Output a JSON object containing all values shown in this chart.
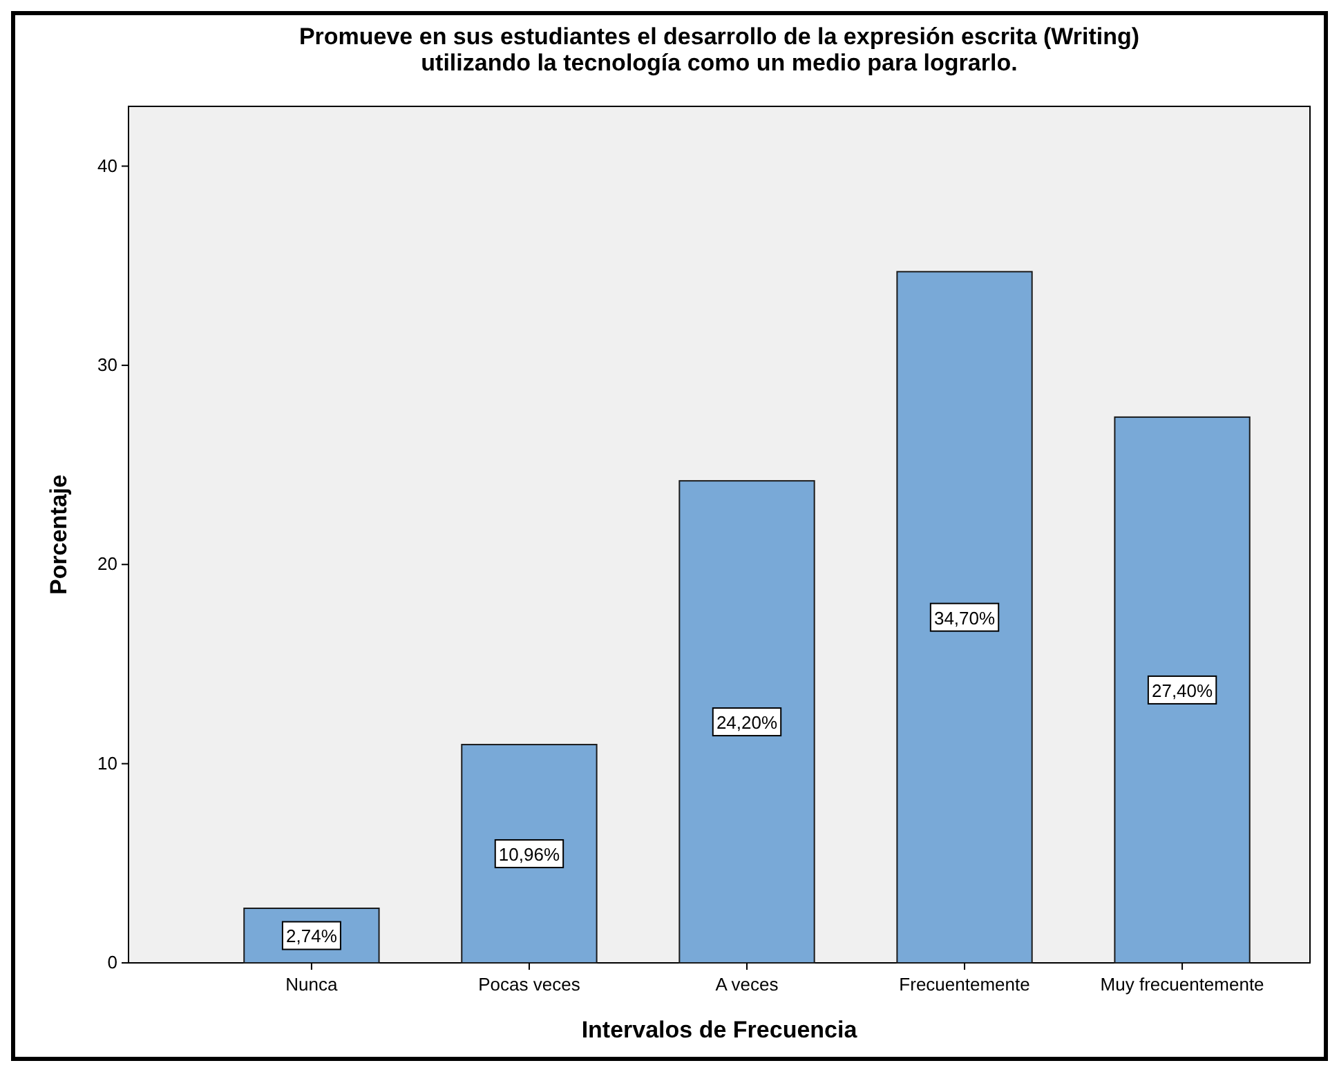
{
  "chart_data": {
    "type": "bar",
    "title": "Promueve en sus estudiantes el desarrollo de la expresión escrita (Writing)\nutilizando la tecnología como un medio para lograrlo.",
    "xlabel": "Intervalos de Frecuencia",
    "ylabel": "Porcentaje",
    "categories": [
      "Nunca",
      "Pocas veces",
      "A veces",
      "Frecuentemente",
      "Muy frecuentemente"
    ],
    "values": [
      2.74,
      10.96,
      24.2,
      34.7,
      27.4
    ],
    "value_labels": [
      "2,74%",
      "10,96%",
      "24,20%",
      "34,70%",
      "27,40%"
    ],
    "color": "#79a9d7",
    "ylim": [
      0,
      43
    ],
    "yticks": [
      0,
      10,
      20,
      30,
      40
    ],
    "grid": false
  }
}
